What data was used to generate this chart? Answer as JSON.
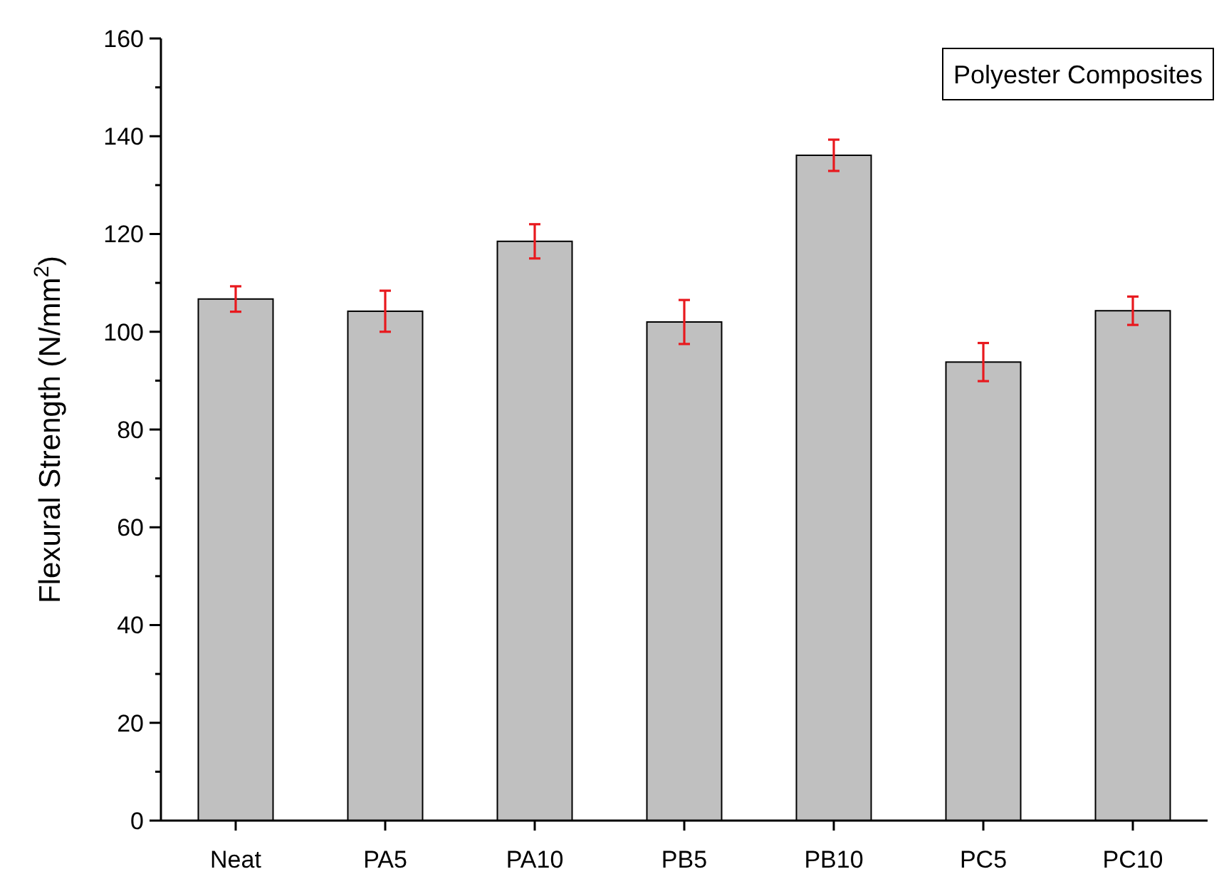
{
  "chart_data": {
    "type": "bar",
    "ylabel": "Flexural Strength (N/mm$^{2}$)",
    "annotations": [
      "Polyester Composites"
    ],
    "categories": [
      "Neat",
      "PA5",
      "PA10",
      "PB5",
      "PB10",
      "PC5",
      "PC10"
    ],
    "series": [
      {
        "color": "#c0c0c0",
        "values": [
          106.7,
          104.2,
          118.5,
          102,
          136.1,
          93.8,
          104.3
        ],
        "errors": [
          2.6,
          4.2,
          3.5,
          4.5,
          3.2,
          3.9,
          2.9
        ]
      }
    ],
    "ylim": [
      0,
      160
    ],
    "yticks": [
      0,
      {
        "value": 10,
        "label": null
      },
      20,
      {
        "value": 30,
        "label": null
      },
      40,
      {
        "value": 50,
        "label": null
      },
      60,
      {
        "value": 70,
        "label": null
      },
      80,
      {
        "value": 90,
        "label": null
      },
      100,
      {
        "value": 110,
        "label": null
      },
      120,
      {
        "value": 130,
        "label": null
      },
      140,
      {
        "value": 150,
        "label": null
      },
      160
    ],
    "grid": false
  }
}
